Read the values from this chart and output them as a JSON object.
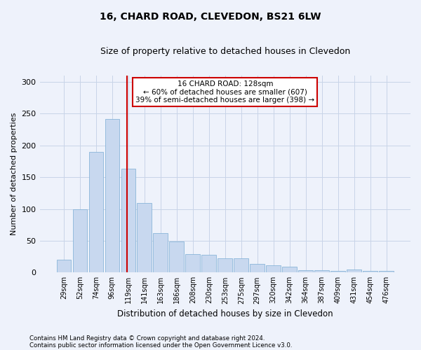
{
  "title": "16, CHARD ROAD, CLEVEDON, BS21 6LW",
  "subtitle": "Size of property relative to detached houses in Clevedon",
  "xlabel": "Distribution of detached houses by size in Clevedon",
  "ylabel": "Number of detached properties",
  "categories": [
    "29sqm",
    "52sqm",
    "74sqm",
    "96sqm",
    "119sqm",
    "141sqm",
    "163sqm",
    "186sqm",
    "208sqm",
    "230sqm",
    "253sqm",
    "275sqm",
    "297sqm",
    "320sqm",
    "342sqm",
    "364sqm",
    "387sqm",
    "409sqm",
    "431sqm",
    "454sqm",
    "476sqm"
  ],
  "values": [
    20,
    99,
    190,
    242,
    163,
    110,
    62,
    49,
    29,
    28,
    22,
    22,
    14,
    11,
    9,
    4,
    4,
    3,
    5,
    2,
    2
  ],
  "bar_color": "#c8d8ef",
  "bar_edge_color": "#7badd4",
  "grid_color": "#c8d4e8",
  "background_color": "#eef2fb",
  "property_line_color": "#cc0000",
  "annotation_text": "16 CHARD ROAD: 128sqm\n← 60% of detached houses are smaller (607)\n39% of semi-detached houses are larger (398) →",
  "annotation_box_color": "#ffffff",
  "annotation_box_edge_color": "#cc0000",
  "ylim": [
    0,
    310
  ],
  "yticks": [
    0,
    50,
    100,
    150,
    200,
    250,
    300
  ],
  "footer_line1": "Contains HM Land Registry data © Crown copyright and database right 2024.",
  "footer_line2": "Contains public sector information licensed under the Open Government Licence v3.0."
}
